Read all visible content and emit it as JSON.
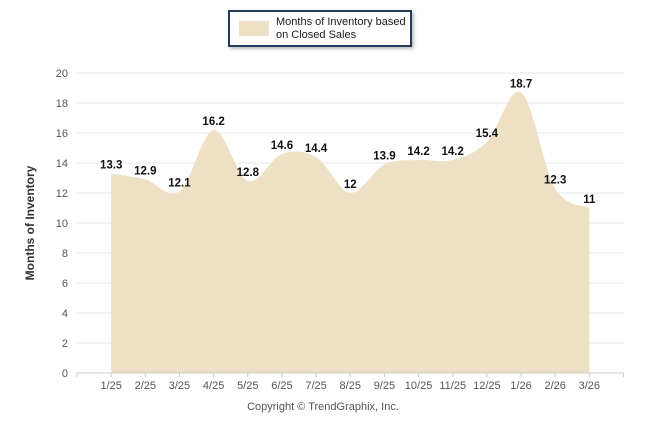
{
  "chart_data": {
    "type": "area",
    "title": "",
    "legend_lines": [
      "Months of Inventory based",
      "on Closed Sales"
    ],
    "legend_position": "top-center",
    "categories": [
      "1/25",
      "2/25",
      "3/25",
      "4/25",
      "5/25",
      "6/25",
      "7/25",
      "8/25",
      "9/25",
      "10/25",
      "11/25",
      "12/25",
      "1/26",
      "2/26",
      "3/26"
    ],
    "values": [
      13.3,
      12.9,
      12.1,
      16.2,
      12.8,
      14.6,
      14.4,
      12,
      13.9,
      14.2,
      14.2,
      15.4,
      18.7,
      12.3,
      11
    ],
    "xlabel": "",
    "ylabel": "Months of Inventory",
    "ylim": [
      0,
      20
    ],
    "ytick_step": 2,
    "grid": true,
    "colors": {
      "area_fill": "#EDE0C4",
      "grid_line": "#E7E7E7",
      "axis_line": "#CCCCCC",
      "tick_label": "#555555",
      "data_label": "#111111",
      "y_title": "#333333",
      "legend_border": "#223A5E"
    }
  },
  "footer": {
    "copyright": "Copyright © TrendGraphix, Inc."
  }
}
